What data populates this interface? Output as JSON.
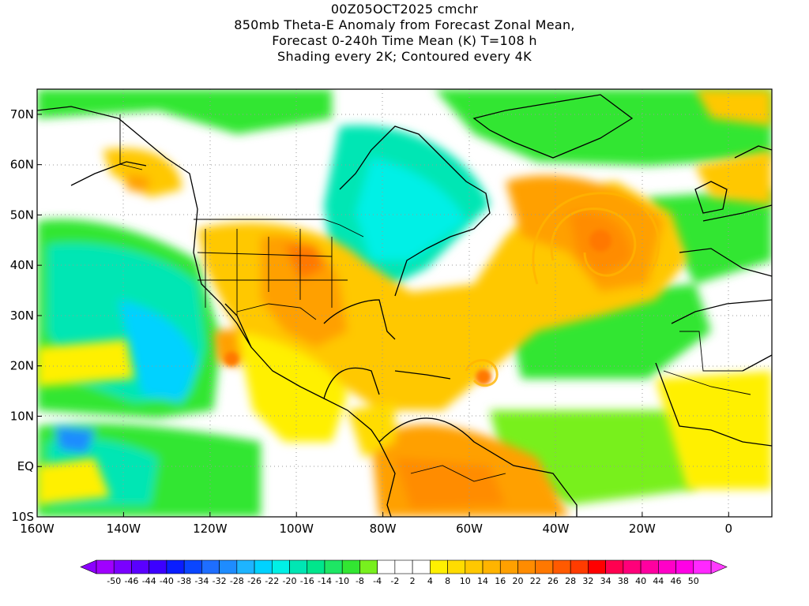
{
  "title": {
    "line1": "00Z05OCT2025 cmchr",
    "line2": "850mb Theta-E Anomaly from Forecast Zonal Mean,",
    "line3": "Forecast 0-240h Time Mean (K) T=108 h",
    "line4": "Shading every 2K; Contoured every 4K"
  },
  "map": {
    "extent": {
      "lon_min": -160,
      "lon_max": 10,
      "lat_min": -10,
      "lat_max": 75
    },
    "lat_ticks": [
      {
        "lat": 70,
        "label": "70N"
      },
      {
        "lat": 60,
        "label": "60N"
      },
      {
        "lat": 50,
        "label": "50N"
      },
      {
        "lat": 40,
        "label": "40N"
      },
      {
        "lat": 30,
        "label": "30N"
      },
      {
        "lat": 20,
        "label": "20N"
      },
      {
        "lat": 10,
        "label": "10N"
      },
      {
        "lat": 0,
        "label": "EQ"
      },
      {
        "lat": -10,
        "label": "10S"
      }
    ],
    "lon_ticks": [
      {
        "lon": -160,
        "label": "160W"
      },
      {
        "lon": -140,
        "label": "140W"
      },
      {
        "lon": -120,
        "label": "120W"
      },
      {
        "lon": -100,
        "label": "100W"
      },
      {
        "lon": -80,
        "label": "80W"
      },
      {
        "lon": -60,
        "label": "60W"
      },
      {
        "lon": -40,
        "label": "40W"
      },
      {
        "lon": -20,
        "label": "20W"
      },
      {
        "lon": 0,
        "label": "0"
      }
    ]
  },
  "colorbar": {
    "labels": [
      "-50",
      "-46",
      "-44",
      "-40",
      "-38",
      "-34",
      "-32",
      "-28",
      "-26",
      "-22",
      "-20",
      "-16",
      "-14",
      "-10",
      "-8",
      "-4",
      "-2",
      "2",
      "4",
      "8",
      "10",
      "14",
      "16",
      "20",
      "22",
      "26",
      "28",
      "32",
      "34",
      "38",
      "40",
      "44",
      "46",
      "50"
    ],
    "colors": [
      "#a000ff",
      "#7a00ff",
      "#5a00ff",
      "#3c00ff",
      "#0a1eff",
      "#0a46ff",
      "#1e6eff",
      "#1e8cff",
      "#1eb4ff",
      "#00d2ff",
      "#00f0e6",
      "#00e6b4",
      "#00e68c",
      "#1ee664",
      "#32e632",
      "#78f01e",
      "#ffffff",
      "#ffffff",
      "#ffffff",
      "#fff000",
      "#ffdc00",
      "#ffc800",
      "#ffb400",
      "#ffa000",
      "#ff8c00",
      "#ff7800",
      "#ff5a00",
      "#ff3c00",
      "#ff0000",
      "#ff0050",
      "#ff007a",
      "#ff00a0",
      "#ff00c8",
      "#ff00e6",
      "#ff28ff"
    ],
    "arrow_left_color": "#8c00ff",
    "arrow_right_color": "#ff3cff"
  }
}
